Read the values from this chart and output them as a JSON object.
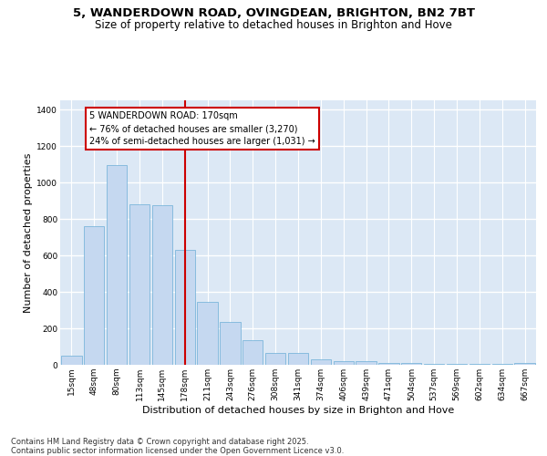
{
  "title_line1": "5, WANDERDOWN ROAD, OVINGDEAN, BRIGHTON, BN2 7BT",
  "title_line2": "Size of property relative to detached houses in Brighton and Hove",
  "xlabel": "Distribution of detached houses by size in Brighton and Hove",
  "ylabel": "Number of detached properties",
  "categories": [
    "15sqm",
    "48sqm",
    "80sqm",
    "113sqm",
    "145sqm",
    "178sqm",
    "211sqm",
    "243sqm",
    "276sqm",
    "308sqm",
    "341sqm",
    "374sqm",
    "406sqm",
    "439sqm",
    "471sqm",
    "504sqm",
    "537sqm",
    "569sqm",
    "602sqm",
    "634sqm",
    "667sqm"
  ],
  "values": [
    50,
    760,
    1095,
    880,
    875,
    630,
    345,
    235,
    135,
    65,
    65,
    30,
    18,
    18,
    10,
    8,
    5,
    3,
    3,
    3,
    8
  ],
  "bar_color": "#c5d8f0",
  "bar_edge_color": "#6baed6",
  "vline_color": "#cc0000",
  "vline_index": 5,
  "annotation_text": "5 WANDERDOWN ROAD: 170sqm\n← 76% of detached houses are smaller (3,270)\n24% of semi-detached houses are larger (1,031) →",
  "annotation_box_edgecolor": "#cc0000",
  "annotation_box_facecolor": "#ffffff",
  "ylim": [
    0,
    1450
  ],
  "yticks": [
    0,
    200,
    400,
    600,
    800,
    1000,
    1200,
    1400
  ],
  "bg_color": "#ffffff",
  "plot_bg_color": "#dce8f5",
  "grid_color": "#ffffff",
  "footer_line1": "Contains HM Land Registry data © Crown copyright and database right 2025.",
  "footer_line2": "Contains public sector information licensed under the Open Government Licence v3.0.",
  "title_fontsize": 9.5,
  "subtitle_fontsize": 8.5,
  "ylabel_fontsize": 8,
  "xlabel_fontsize": 8,
  "tick_fontsize": 6.5,
  "annotation_fontsize": 7,
  "footer_fontsize": 6
}
